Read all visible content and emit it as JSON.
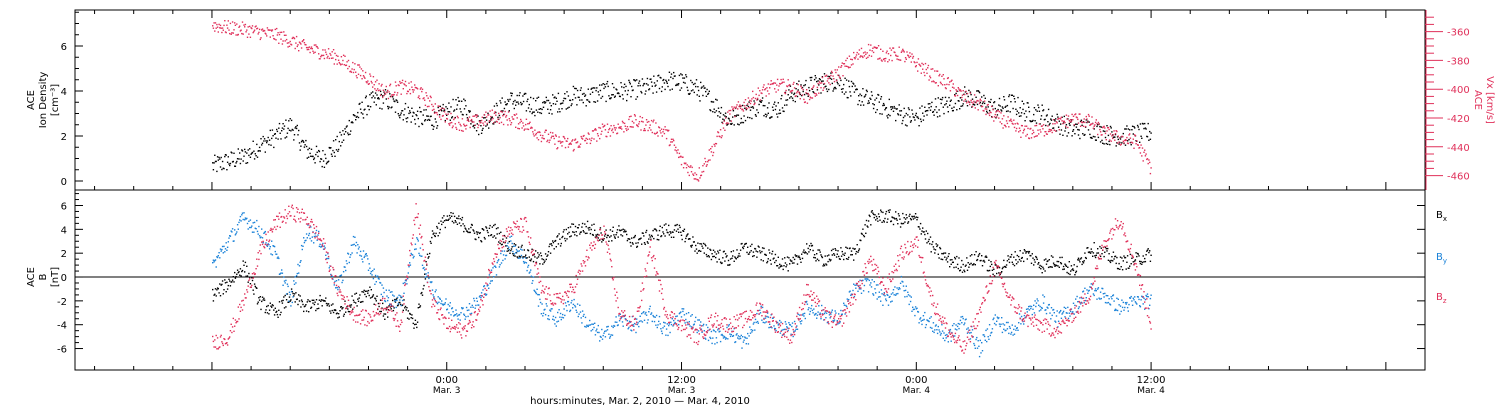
{
  "colors": {
    "black": "#000000",
    "red": "#e0305a",
    "blue": "#1a82d8",
    "axis": "#000000"
  },
  "chart_data": [
    {
      "type": "scatter",
      "panel": "top",
      "ylabel_left": [
        "ACE",
        "Ion Density",
        "[cm⁻³]"
      ],
      "ylabel_right": [
        "ACE",
        "Vx [km/s]"
      ],
      "ylim_left": [
        -0.4,
        7.6
      ],
      "yticks_left": [
        0,
        2,
        4,
        6
      ],
      "ylim_right": [
        -470,
        -345
      ],
      "yticks_right": [
        -360,
        -380,
        -400,
        -420,
        -440,
        -460
      ],
      "series": [
        {
          "color": "black",
          "axis": "left",
          "x": [
            0,
            1,
            2,
            3,
            4,
            5,
            6,
            7,
            8,
            9,
            10,
            11,
            12,
            13,
            14,
            15,
            16,
            17,
            18,
            19,
            20,
            21,
            22,
            23,
            24,
            25,
            26,
            27,
            28,
            29,
            30,
            31,
            32,
            33,
            34,
            35,
            36,
            37,
            38,
            39,
            40,
            41,
            42,
            43,
            44,
            45,
            46,
            47,
            48,
            49,
            50,
            51,
            52,
            53,
            54,
            55,
            56,
            57,
            58,
            59,
            60
          ],
          "y": [
            0.7,
            0.9,
            1.1,
            1.6,
            2.0,
            2.5,
            1.4,
            1.0,
            1.6,
            2.8,
            3.5,
            3.7,
            3.2,
            2.9,
            2.7,
            3.1,
            3.4,
            2.5,
            3.0,
            3.6,
            3.5,
            3.3,
            3.5,
            3.8,
            3.8,
            4.0,
            4.0,
            4.1,
            4.2,
            4.5,
            4.4,
            4.1,
            3.5,
            2.7,
            3.1,
            3.4,
            3.2,
            3.9,
            4.2,
            4.4,
            4.5,
            3.9,
            3.6,
            3.3,
            3.0,
            2.8,
            3.3,
            3.4,
            3.8,
            3.6,
            3.2,
            3.5,
            3.1,
            3.0,
            2.6,
            2.3,
            2.4,
            2.1,
            2.0,
            2.1,
            2.2
          ]
        },
        {
          "color": "red",
          "axis": "right",
          "x": [
            0,
            1,
            2,
            3,
            4,
            5,
            6,
            7,
            8,
            9,
            10,
            11,
            12,
            13,
            14,
            15,
            16,
            17,
            18,
            19,
            20,
            21,
            22,
            23,
            24,
            25,
            26,
            27,
            28,
            29,
            30,
            31,
            32,
            33,
            34,
            35,
            36,
            37,
            38,
            39,
            40,
            41,
            42,
            43,
            44,
            45,
            46,
            47,
            48,
            49,
            50,
            51,
            52,
            53,
            54,
            55,
            56,
            57,
            58,
            59,
            60
          ],
          "y": [
            -355,
            -357,
            -358,
            -360,
            -362,
            -366,
            -371,
            -374,
            -378,
            -385,
            -392,
            -402,
            -398,
            -400,
            -410,
            -420,
            -424,
            -422,
            -418,
            -420,
            -424,
            -431,
            -436,
            -438,
            -434,
            -428,
            -426,
            -422,
            -425,
            -430,
            -450,
            -460,
            -440,
            -418,
            -410,
            -402,
            -397,
            -398,
            -405,
            -396,
            -388,
            -378,
            -372,
            -376,
            -375,
            -382,
            -390,
            -396,
            -405,
            -410,
            -418,
            -425,
            -430,
            -428,
            -424,
            -420,
            -422,
            -430,
            -434,
            -436,
            -455
          ]
        }
      ]
    },
    {
      "type": "scatter",
      "panel": "bottom",
      "ylabel_left": [
        "ACE",
        "B",
        "[nT]"
      ],
      "ylim": [
        -7.8,
        7.3
      ],
      "yticks": [
        -6,
        -4,
        -2,
        0,
        2,
        4,
        6
      ],
      "legend": [
        {
          "label": "Bx",
          "color": "black"
        },
        {
          "label": "By",
          "color": "blue"
        },
        {
          "label": "Bz",
          "color": "red"
        }
      ],
      "series": [
        {
          "name": "Bx",
          "color": "black",
          "x": [
            0,
            1,
            2,
            3,
            4,
            5,
            6,
            7,
            8,
            9,
            10,
            11,
            12,
            13,
            14,
            15,
            16,
            17,
            18,
            19,
            20,
            21,
            22,
            23,
            24,
            25,
            26,
            27,
            28,
            29,
            30,
            31,
            32,
            33,
            34,
            35,
            36,
            37,
            38,
            39,
            40,
            41,
            42,
            43,
            44,
            45,
            46,
            47,
            48,
            49,
            50,
            51,
            52,
            53,
            54,
            55,
            56,
            57,
            58,
            59,
            60
          ],
          "y": [
            -1.5,
            -0.5,
            1.0,
            -2.0,
            -3.0,
            -1.5,
            -2.5,
            -2.0,
            -3.0,
            -2.0,
            -1.0,
            -3.0,
            -2.0,
            -4.0,
            3.5,
            5.0,
            4.5,
            3.5,
            4.0,
            2.5,
            2.0,
            1.5,
            3.0,
            4.0,
            4.2,
            3.5,
            3.8,
            3.0,
            3.5,
            4.0,
            3.8,
            2.5,
            2.0,
            1.5,
            2.5,
            2.0,
            1.5,
            1.0,
            2.5,
            1.5,
            2.0,
            2.0,
            5.0,
            5.2,
            4.8,
            4.9,
            2.5,
            1.5,
            1.0,
            1.8,
            0.5,
            1.5,
            2.0,
            1.0,
            1.5,
            0.5,
            2.5,
            2.0,
            1.2,
            1.5,
            2.0
          ]
        },
        {
          "name": "By",
          "color": "blue",
          "x": [
            0,
            1,
            2,
            3,
            4,
            5,
            6,
            7,
            8,
            9,
            10,
            11,
            12,
            13,
            14,
            15,
            16,
            17,
            18,
            19,
            20,
            21,
            22,
            23,
            24,
            25,
            26,
            27,
            28,
            29,
            30,
            31,
            32,
            33,
            34,
            35,
            36,
            37,
            38,
            39,
            40,
            41,
            42,
            43,
            44,
            45,
            46,
            47,
            48,
            49,
            50,
            51,
            52,
            53,
            54,
            55,
            56,
            57,
            58,
            59,
            60
          ],
          "y": [
            1.0,
            3.0,
            5.0,
            4.0,
            2.0,
            -2.0,
            4.0,
            3.0,
            -1.0,
            3.0,
            1.0,
            -1.5,
            -2.0,
            3.0,
            -1.0,
            -2.5,
            -3.0,
            -2.0,
            0.5,
            3.0,
            1.5,
            -2.5,
            -3.5,
            -2.0,
            -4.0,
            -5.0,
            -3.5,
            -4.0,
            -3.0,
            -4.5,
            -3.0,
            -4.0,
            -5.0,
            -4.5,
            -5.5,
            -3.0,
            -4.0,
            -4.5,
            -2.5,
            -3.0,
            -3.5,
            -1.0,
            -0.5,
            -2.0,
            -0.5,
            -3.0,
            -4.0,
            -5.0,
            -3.5,
            -6.0,
            -3.5,
            -4.5,
            -3.0,
            -2.0,
            -3.5,
            -2.5,
            -1.0,
            -1.5,
            -2.5,
            -2.0,
            -2.0
          ]
        },
        {
          "name": "Bz",
          "color": "red",
          "x": [
            0,
            1,
            2,
            3,
            4,
            5,
            6,
            7,
            8,
            9,
            10,
            11,
            12,
            13,
            14,
            15,
            16,
            17,
            18,
            19,
            20,
            21,
            22,
            23,
            24,
            25,
            26,
            27,
            28,
            29,
            30,
            31,
            32,
            33,
            34,
            35,
            36,
            37,
            38,
            39,
            40,
            41,
            42,
            43,
            44,
            45,
            46,
            47,
            48,
            49,
            50,
            51,
            52,
            53,
            54,
            55,
            56,
            57,
            58,
            59,
            60
          ],
          "y": [
            -5.5,
            -5.0,
            -2.0,
            2.0,
            4.5,
            5.5,
            5.0,
            3.0,
            -1.0,
            -3.0,
            -3.5,
            -2.0,
            -4.0,
            6.0,
            -2.0,
            -4.0,
            -4.5,
            -3.0,
            2.0,
            4.0,
            4.5,
            -1.0,
            -2.0,
            -1.0,
            2.0,
            4.0,
            -3.0,
            -4.0,
            2.5,
            -3.0,
            -4.0,
            -5.0,
            -3.5,
            -4.0,
            -3.5,
            -2.5,
            -4.0,
            -5.0,
            -1.0,
            -3.0,
            -4.0,
            -1.5,
            1.5,
            -1.0,
            2.0,
            3.0,
            -2.0,
            -4.5,
            -6.0,
            -3.0,
            1.0,
            -2.0,
            -3.5,
            -4.0,
            -4.5,
            -3.0,
            -1.5,
            3.0,
            5.0,
            1.0,
            -4.0
          ]
        }
      ]
    }
  ],
  "x_axis": {
    "range_hours": [
      -19,
      50
    ],
    "major_ticks": [
      {
        "hour": 0,
        "time": "0:00",
        "date": "Mar. 3"
      },
      {
        "hour": 12,
        "time": "12:00",
        "date": "Mar. 3"
      },
      {
        "hour": 24,
        "time": "0:00",
        "date": "Mar. 4"
      },
      {
        "hour": 36,
        "time": "12:00",
        "date": "Mar. 4"
      }
    ],
    "xlabel": "hours:minutes, Mar. 2, 2010 — Mar. 4, 2010",
    "data_start_hour": -12,
    "data_end_hour": 36
  },
  "legend_labels": {
    "bx": "Bx",
    "by": "By",
    "bz": "Bz"
  },
  "top_labels": {
    "ace": "ACE",
    "density": "Ion Density",
    "density_unit": "[cm⁻³]",
    "vx": "Vx [km/s]"
  },
  "bottom_labels": {
    "ace": "ACE",
    "b": "B",
    "unit": "[nT]"
  }
}
